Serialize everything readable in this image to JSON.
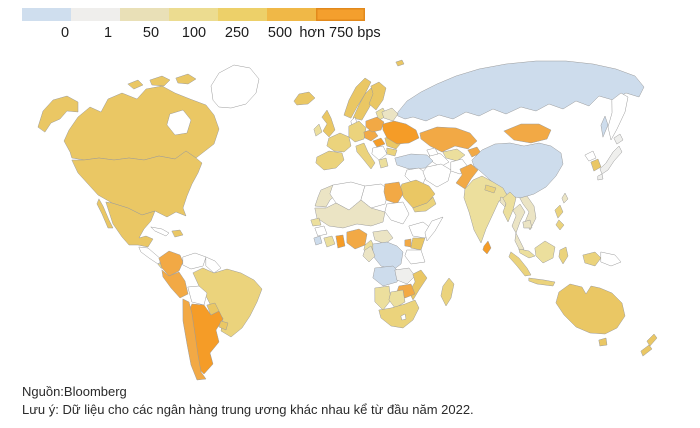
{
  "legend": {
    "labels": [
      "0",
      "1",
      "50",
      "100",
      "250",
      "500",
      "hơn 750 bps"
    ],
    "colors": [
      "#cfdeee",
      "#efeeec",
      "#e9e0b7",
      "#ecdc90",
      "#edd069",
      "#f0b847",
      "#f49f2d"
    ],
    "last_segment_border": "#e2891c"
  },
  "footer": {
    "source": "Nguồn:Bloomberg",
    "note": "Lưu ý: Dữ liệu cho các ngân hàng trung ương khác nhau kể từ đầu năm 2022."
  },
  "chart_data": {
    "type": "heatmap",
    "subtype": "choropleth-world-map",
    "title": "",
    "unit": "bps",
    "legend_bins": [
      "<0",
      "0-1",
      "1-50",
      "50-100",
      "100-250",
      "250-500",
      "500-750",
      ">750"
    ],
    "legend_tick_labels": [
      "0",
      "1",
      "50",
      "100",
      "250",
      "500",
      "hơn 750 bps"
    ],
    "source": "Bloomberg",
    "note": "Dữ liệu cho các ngân hàng trung ương khác nhau kể từ đầu năm 2022."
  },
  "map": {
    "palette": {
      "cut": "#cddcec",
      "zero": "#efefed",
      "b1_50": "#ebe4c4",
      "b50_100": "#ecdf9d",
      "b100_250": "#ebd37c",
      "b250_500": "#eac764",
      "b500_750": "#f2a945",
      "over750": "#f59c27",
      "nodata": "#ffffff"
    },
    "regions": {
      "greenland": "nodata",
      "canada": "b250_500",
      "usa": "b250_500",
      "mexico": "b250_500",
      "central-america": "nodata",
      "costa-rica-panama": "b100_250",
      "cuba": "nodata",
      "dominican-republic": "b250_500",
      "colombia": "b500_750",
      "venezuela": "nodata",
      "guyanas": "nodata",
      "brazil": "b100_250",
      "peru": "b500_750",
      "bolivia": "nodata",
      "paraguay": "b250_500",
      "uruguay": "b250_500",
      "chile": "b500_750",
      "argentina": "over750",
      "iceland": "b250_500",
      "uk": "b250_500",
      "ireland": "b50_100",
      "norway": "b250_500",
      "sweden": "b250_500",
      "finland": "b250_500",
      "denmark": "nodata",
      "baltics": "b50_100",
      "iberia": "b100_250",
      "france": "b100_250",
      "germany": "b100_250",
      "italy": "b100_250",
      "czech-slovakia": "b500_750",
      "poland": "b500_750",
      "hungary": "over750",
      "balkans": "nodata",
      "greece": "b50_100",
      "romania": "b250_500",
      "bulgaria": "b100_250",
      "belarus": "b1_50",
      "ukraine": "over750",
      "russia": "cut",
      "kamchatka": "nodata",
      "kazakhstan": "b500_750",
      "uzbekistan": "b50_100",
      "turkmenistan": "nodata",
      "kyrgyzstan": "b500_750",
      "caucasus": "nodata",
      "turkey": "cut",
      "syria-iraq": "nodata",
      "iran": "nodata",
      "afghanistan": "nodata",
      "pakistan": "b500_750",
      "india": "b50_100",
      "nepal": "b100_250",
      "bangladesh": "b1_50",
      "sri-lanka": "over750",
      "saudi-arabia": "b250_500",
      "yemen-oman": "b100_250",
      "mongolia": "b500_750",
      "china": "cut",
      "north-korea": "nodata",
      "south-korea": "b250_500",
      "japan": "zero",
      "taiwan": "b1_50",
      "myanmar": "b50_100",
      "thailand": "b1_50",
      "vietnam-laos": "b1_50",
      "cambodia": "b1_50",
      "malaysia": "b50_100",
      "philippines": "b100_250",
      "indonesia": "b100_250",
      "borneo": "b50_100",
      "papua-new-guinea": "nodata",
      "morocco": "b1_50",
      "algeria": "nodata",
      "libya": "nodata",
      "egypt": "b500_750",
      "sudan": "nodata",
      "sahel": "b1_50",
      "senegal": "b50_100",
      "guinea": "nodata",
      "sierra-leone": "cut",
      "ivory-coast": "b50_100",
      "ghana": "over750",
      "nigeria": "b500_750",
      "cameroon": "b50_100",
      "central-african-republic": "b1_50",
      "ethiopia": "nodata",
      "somalia": "nodata",
      "kenya": "b250_500",
      "uganda": "b500_750",
      "tanzania": "nodata",
      "drc": "cut",
      "gabon-congo": "b1_50",
      "angola": "cut",
      "zambia": "zero",
      "mozambique": "b250_500",
      "zimbabwe": "b500_750",
      "namibia": "b50_100",
      "botswana": "b50_100",
      "south-africa": "b100_250",
      "lesotho": "nodata",
      "madagascar": "b100_250",
      "australia": "b250_500",
      "new-zealand": "b250_500"
    }
  }
}
